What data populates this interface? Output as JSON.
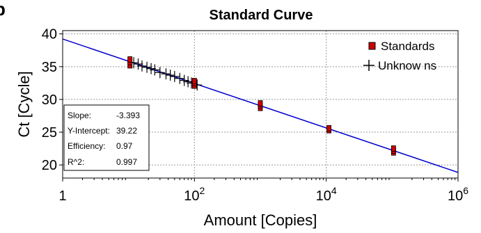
{
  "panel_letter": "b",
  "chart_data": {
    "type": "scatter",
    "title": "Standard Curve",
    "xlabel": "Amount [Copies]",
    "ylabel": "Ct [Cycle]",
    "x_scale": "log10",
    "xlim": [
      1,
      1000000
    ],
    "ylim": [
      18,
      40.5
    ],
    "x_ticks": [
      {
        "value": 1,
        "base": "1",
        "exp": ""
      },
      {
        "value": 100,
        "base": "10",
        "exp": "2"
      },
      {
        "value": 10000,
        "base": "10",
        "exp": "4"
      },
      {
        "value": 1000000,
        "base": "10",
        "exp": "6"
      }
    ],
    "y_ticks": [
      20,
      25,
      30,
      35,
      40
    ],
    "grid": true,
    "legend_position": "top-right",
    "fit_line": {
      "slope": -3.393,
      "intercept": 39.22,
      "color": "#0000cc"
    },
    "series": [
      {
        "name": "Standards",
        "marker": "filled-square",
        "color": "#cc0000",
        "points": [
          {
            "x": 10.5,
            "y": 35.2
          },
          {
            "x": 10.5,
            "y": 35.7
          },
          {
            "x": 10.5,
            "y": 36.1
          },
          {
            "x": 100,
            "y": 32.1
          },
          {
            "x": 100,
            "y": 32.5
          },
          {
            "x": 100,
            "y": 32.8
          },
          {
            "x": 1000,
            "y": 28.7
          },
          {
            "x": 1000,
            "y": 29.1
          },
          {
            "x": 1000,
            "y": 29.4
          },
          {
            "x": 11000,
            "y": 25.3
          },
          {
            "x": 11000,
            "y": 25.6
          },
          {
            "x": 105000,
            "y": 21.9
          },
          {
            "x": 105000,
            "y": 22.2
          },
          {
            "x": 105000,
            "y": 22.5
          }
        ]
      },
      {
        "name": "Unknow ns",
        "marker": "plus",
        "color": "#000000",
        "points": [
          {
            "x": 12,
            "y": 35.6
          },
          {
            "x": 14,
            "y": 35.4
          },
          {
            "x": 16,
            "y": 35.1
          },
          {
            "x": 19,
            "y": 34.9
          },
          {
            "x": 22,
            "y": 34.7
          },
          {
            "x": 25,
            "y": 34.5
          },
          {
            "x": 30,
            "y": 34.1
          },
          {
            "x": 37,
            "y": 33.9
          },
          {
            "x": 43,
            "y": 33.7
          },
          {
            "x": 50,
            "y": 33.5
          },
          {
            "x": 60,
            "y": 33.2
          },
          {
            "x": 70,
            "y": 32.9
          },
          {
            "x": 80,
            "y": 32.7
          },
          {
            "x": 90,
            "y": 32.5
          },
          {
            "x": 110,
            "y": 32.2
          }
        ]
      }
    ],
    "stats": [
      {
        "label": "Slope:",
        "value": "-3.393"
      },
      {
        "label": "Y-Intercept:",
        "value": "39.22"
      },
      {
        "label": "Efficiency:",
        "value": "0.97"
      },
      {
        "label": "R^2:",
        "value": "0.997"
      }
    ]
  }
}
